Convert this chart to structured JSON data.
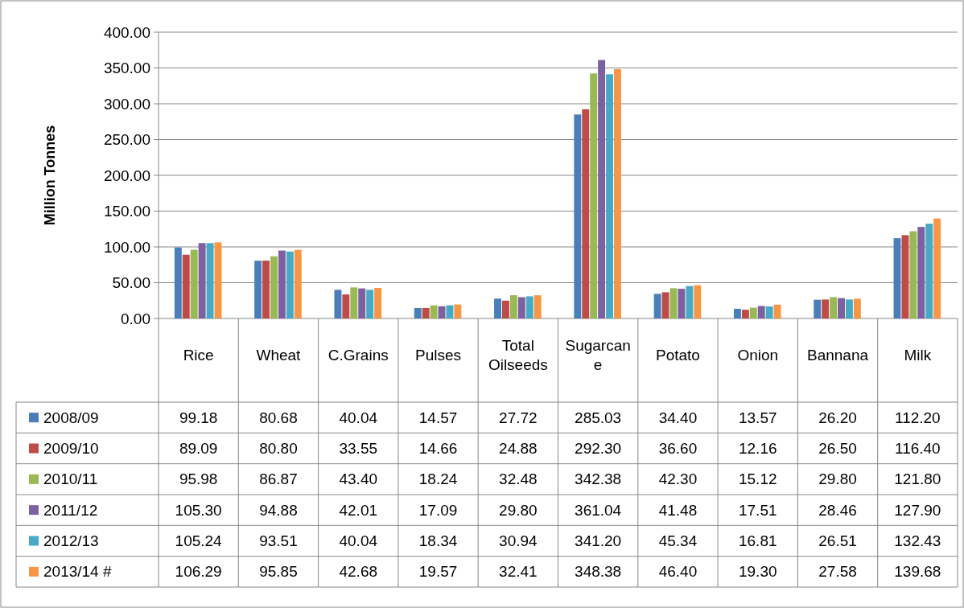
{
  "chart_data": {
    "type": "bar",
    "ylabel": "Million Tonnes",
    "categories": [
      "Rice",
      "Wheat",
      "C.Grains",
      "Pulses",
      "Total Oilseeds",
      "Sugarcane",
      "Potato",
      "Onion",
      "Bannana",
      "Milk"
    ],
    "series": [
      {
        "name": "2008/09",
        "color": "#4a7ebb",
        "values": [
          99.18,
          80.68,
          40.04,
          14.57,
          27.72,
          285.03,
          34.4,
          13.57,
          26.2,
          112.2
        ],
        "value_labels": [
          "99.18",
          "80.68",
          "40.04",
          "14.57",
          "27.72",
          "285.03",
          "34.40",
          "13.57",
          "26.20",
          "112.20"
        ]
      },
      {
        "name": "2009/10",
        "color": "#be4b48",
        "values": [
          89.09,
          80.8,
          33.55,
          14.66,
          24.88,
          292.3,
          36.6,
          12.16,
          26.5,
          116.4
        ],
        "value_labels": [
          "89.09",
          "80.80",
          "33.55",
          "14.66",
          "24.88",
          "292.30",
          "36.60",
          "12.16",
          "26.50",
          "116.40"
        ]
      },
      {
        "name": "2010/11",
        "color": "#98b954",
        "values": [
          95.98,
          86.87,
          43.4,
          18.24,
          32.48,
          342.38,
          42.3,
          15.12,
          29.8,
          121.8
        ],
        "value_labels": [
          "95.98",
          "86.87",
          "43.40",
          "18.24",
          "32.48",
          "342.38",
          "42.30",
          "15.12",
          "29.80",
          "121.80"
        ]
      },
      {
        "name": "2011/12",
        "color": "#7d60a0",
        "values": [
          105.3,
          94.88,
          42.01,
          17.09,
          29.8,
          361.04,
          41.48,
          17.51,
          28.46,
          127.9
        ],
        "value_labels": [
          "105.30",
          "94.88",
          "42.01",
          "17.09",
          "29.80",
          "361.04",
          "41.48",
          "17.51",
          "28.46",
          "127.90"
        ]
      },
      {
        "name": "2012/13",
        "color": "#46aac5",
        "values": [
          105.24,
          93.51,
          40.04,
          18.34,
          30.94,
          341.2,
          45.34,
          16.81,
          26.51,
          132.43
        ],
        "value_labels": [
          "105.24",
          "93.51",
          "40.04",
          "18.34",
          "30.94",
          "341.20",
          "45.34",
          "16.81",
          "26.51",
          "132.43"
        ]
      },
      {
        "name": "2013/14 #",
        "color": "#f79646",
        "values": [
          106.29,
          95.85,
          42.68,
          19.57,
          32.41,
          348.38,
          46.4,
          19.3,
          27.58,
          139.68
        ],
        "value_labels": [
          "106.29",
          "95.85",
          "42.68",
          "19.57",
          "32.41",
          "348.38",
          "46.40",
          "19.30",
          "27.58",
          "139.68"
        ]
      }
    ],
    "ylim": [
      0,
      400
    ],
    "yticks": [
      {
        "value": 0,
        "label": "0.00"
      },
      {
        "value": 50,
        "label": "50.00"
      },
      {
        "value": 100,
        "label": "100.00"
      },
      {
        "value": 150,
        "label": "150.00"
      },
      {
        "value": 200,
        "label": "200.00"
      },
      {
        "value": 250,
        "label": "250.00"
      },
      {
        "value": 300,
        "label": "300.00"
      },
      {
        "value": 350,
        "label": "350.00"
      },
      {
        "value": 400,
        "label": "400.00"
      }
    ],
    "grid": "y",
    "legend": "bottom"
  }
}
